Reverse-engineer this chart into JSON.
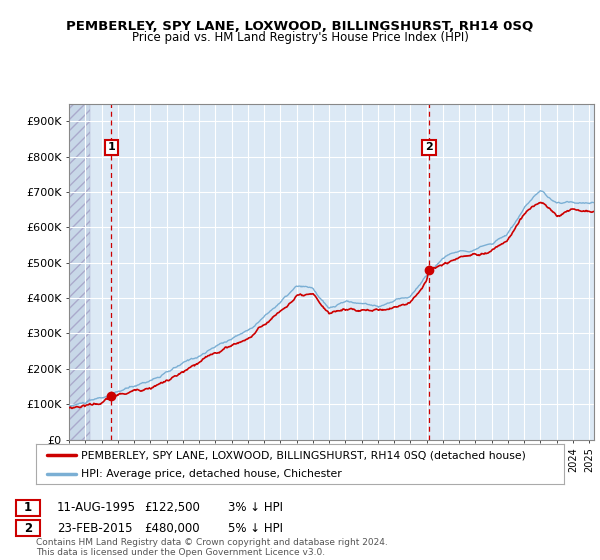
{
  "title": "PEMBERLEY, SPY LANE, LOXWOOD, BILLINGSHURST, RH14 0SQ",
  "subtitle": "Price paid vs. HM Land Registry's House Price Index (HPI)",
  "sale1_date": 1995.61,
  "sale1_price": 122500,
  "sale2_date": 2015.15,
  "sale2_price": 480000,
  "legend_line1": "PEMBERLEY, SPY LANE, LOXWOOD, BILLINGSHURST, RH14 0SQ (detached house)",
  "legend_line2": "HPI: Average price, detached house, Chichester",
  "sale1_row": "11-AUG-1995",
  "sale1_price_str": "£122,500",
  "sale1_hpi": "3% ↓ HPI",
  "sale2_row": "23-FEB-2015",
  "sale2_price_str": "£480,000",
  "sale2_hpi": "5% ↓ HPI",
  "footer": "Contains HM Land Registry data © Crown copyright and database right 2024.\nThis data is licensed under the Open Government Licence v3.0.",
  "hpi_color": "#7bafd4",
  "price_color": "#cc0000",
  "dashed_color": "#cc0000",
  "chart_bg": "#dce9f5",
  "ylim_max": 950000,
  "xmin": 1993.0,
  "xmax": 2025.3,
  "hpi_seed": 10,
  "price_seed": 20
}
